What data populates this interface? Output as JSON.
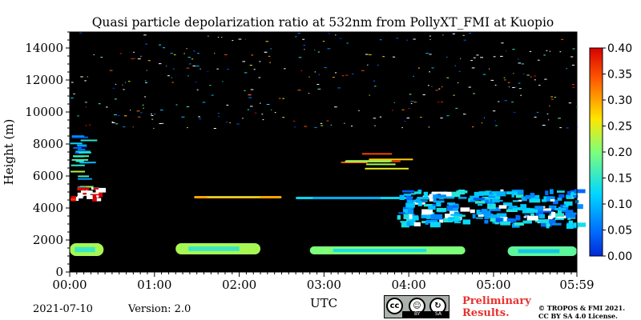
{
  "chart_data": {
    "type": "heatmap",
    "title": "Quasi particle depolarization ratio at 532nm from PollyXT_FMI at Kuopio",
    "xlabel": "UTC",
    "ylabel": "Height (m)",
    "x_ticks": [
      "00:00",
      "01:00",
      "02:00",
      "03:00",
      "04:00",
      "05:00",
      "05:59"
    ],
    "x_tick_minutes": [
      0,
      60,
      120,
      180,
      240,
      300,
      359
    ],
    "xlim_minutes": [
      0,
      359
    ],
    "y_ticks": [
      0,
      2000,
      4000,
      6000,
      8000,
      10000,
      12000,
      14000
    ],
    "ylim": [
      0,
      15000
    ],
    "colorbar": {
      "ticks": [
        "0.00",
        "0.05",
        "0.10",
        "0.15",
        "0.20",
        "0.25",
        "0.30",
        "0.35",
        "0.40"
      ],
      "range": [
        0,
        0.4
      ],
      "colormap": "jet"
    },
    "background_color": "#000000",
    "features": [
      {
        "t0": 0,
        "t1": 16,
        "h0": 5200,
        "h1": 8600,
        "value": 0.13,
        "pattern": "streaks"
      },
      {
        "t0": 0,
        "t1": 20,
        "h0": 4500,
        "h1": 5300,
        "value": 0.4,
        "pattern": "cloud"
      },
      {
        "t0": 0,
        "t1": 24,
        "h0": 1000,
        "h1": 1800,
        "value": 0.22,
        "pattern": "layer"
      },
      {
        "t0": 75,
        "t1": 135,
        "h0": 1100,
        "h1": 1800,
        "value": 0.22,
        "pattern": "layer"
      },
      {
        "t0": 88,
        "t1": 150,
        "h0": 4600,
        "h1": 4750,
        "value": 0.3,
        "pattern": "layer"
      },
      {
        "t0": 160,
        "t1": 240,
        "h0": 4550,
        "h1": 4700,
        "value": 0.12,
        "pattern": "layer"
      },
      {
        "t0": 192,
        "t1": 240,
        "h0": 6500,
        "h1": 7500,
        "value": 0.28,
        "pattern": "streaks"
      },
      {
        "t0": 170,
        "t1": 280,
        "h0": 1100,
        "h1": 1600,
        "value": 0.2,
        "pattern": "layer"
      },
      {
        "t0": 230,
        "t1": 359,
        "h0": 3000,
        "h1": 5200,
        "value": 0.07,
        "pattern": "cloud"
      },
      {
        "t0": 310,
        "t1": 359,
        "h0": 1000,
        "h1": 1600,
        "value": 0.18,
        "pattern": "layer"
      }
    ]
  },
  "footer": {
    "date": "2021-07-10",
    "version": "Version: 2.0",
    "preliminary_line1": "Preliminary",
    "preliminary_line2": "Results.",
    "copyright_line1": "© TROPOS & FMI 2021.",
    "copyright_line2": "CC BY SA 4.0 License."
  },
  "license_badge": {
    "icon": "cc-by-sa-badge",
    "by": "BY",
    "sa": "SA"
  }
}
